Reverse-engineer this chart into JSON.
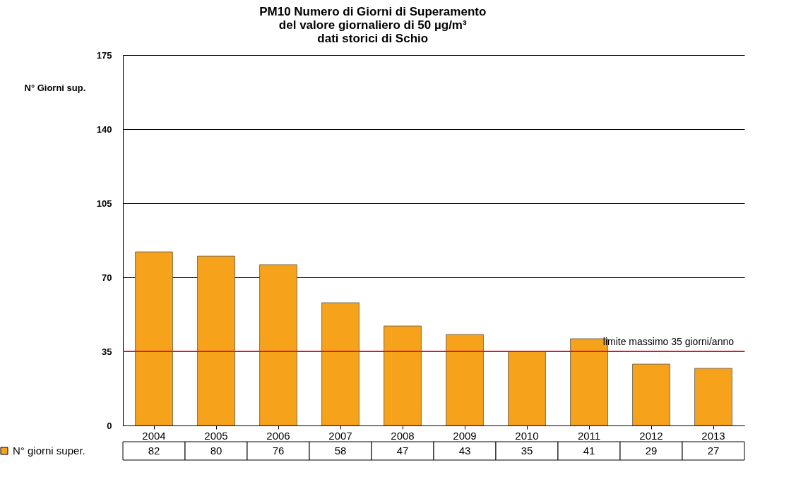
{
  "chart_data": {
    "type": "bar",
    "title": "PM10 Numero di Giorni di Superamento\ndel valore giornaliero di 50 µg/m³\ndati storici di Schio",
    "ylabel": "N° Giorni sup.",
    "categories": [
      "2004",
      "2005",
      "2006",
      "2007",
      "2008",
      "2009",
      "2010",
      "2011",
      "2012",
      "2013"
    ],
    "series": [
      {
        "name": "N° giorni super.",
        "color": "#f7a21b",
        "values": [
          82,
          80,
          76,
          58,
          47,
          43,
          35,
          41,
          29,
          27
        ]
      }
    ],
    "ylim": [
      0,
      175
    ],
    "yticks": [
      0,
      35,
      70,
      105,
      140,
      175
    ],
    "grid": "y",
    "legend": "bottom left",
    "data_labels": true,
    "ref_lines": [
      {
        "axis": "y",
        "value": 35,
        "label": "limite massimo 35 giorni/anno",
        "color": "#e8141b"
      }
    ]
  }
}
